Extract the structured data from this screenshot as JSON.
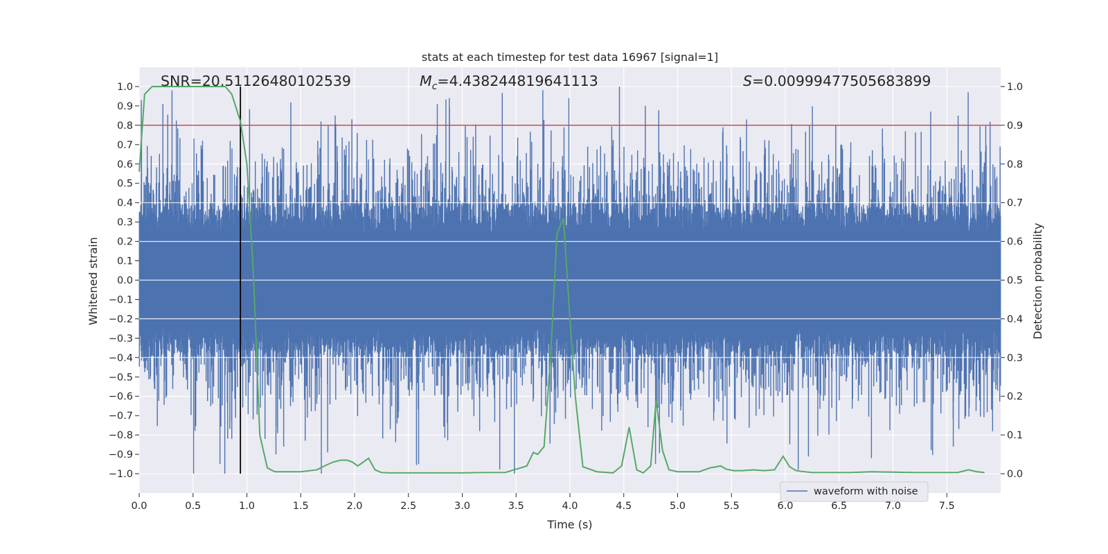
{
  "chart_data": {
    "type": "line",
    "title": "stats at each timestep for test data 16967 [signal=1]",
    "xlabel": "Time (s)",
    "ylabel": "Whitened strain",
    "y2label": "Detection probability",
    "xlim": [
      0.0,
      8.0
    ],
    "ylim": [
      -1.1,
      1.1
    ],
    "y2lim": [
      -0.05,
      1.05
    ],
    "xticks": [
      0.0,
      0.5,
      1.0,
      1.5,
      2.0,
      2.5,
      3.0,
      3.5,
      4.0,
      4.5,
      5.0,
      5.5,
      6.0,
      6.5,
      7.0,
      7.5
    ],
    "yticks": [
      1.0,
      0.9,
      0.8,
      0.7,
      0.6,
      0.5,
      0.4,
      0.3,
      0.2,
      0.1,
      0.0,
      -0.1,
      -0.2,
      -0.3,
      -0.4,
      -0.5,
      -0.6,
      -0.7,
      -0.8,
      -0.9,
      -1.0
    ],
    "y2ticks": [
      1.0,
      0.9,
      0.8,
      0.7,
      0.6,
      0.5,
      0.4,
      0.3,
      0.2,
      0.1,
      0.0
    ],
    "xtick_labels": [
      "0.0",
      "0.5",
      "1.0",
      "1.5",
      "2.0",
      "2.5",
      "3.0",
      "3.5",
      "4.0",
      "4.5",
      "5.0",
      "5.5",
      "6.0",
      "6.5",
      "7.0",
      "7.5"
    ],
    "ytick_labels": [
      "1.0",
      "0.9",
      "0.8",
      "0.7",
      "0.6",
      "0.5",
      "0.4",
      "0.3",
      "0.2",
      "0.1",
      "0.0",
      "−0.1",
      "−0.2",
      "−0.3",
      "−0.4",
      "−0.5",
      "−0.6",
      "−0.7",
      "−0.8",
      "−0.9",
      "−1.0"
    ],
    "y2tick_labels": [
      "1.0",
      "0.9",
      "0.8",
      "0.7",
      "0.6",
      "0.5",
      "0.4",
      "0.3",
      "0.2",
      "0.1",
      "0.0"
    ],
    "annotations": {
      "snr": "SNR=20.51126480102539",
      "mc_symbol": "M",
      "mc_sub": "c",
      "mc_value": "=4.438244819641113",
      "s_symbol": "S",
      "s_value": "=0.00999477505683899"
    },
    "threshold_line": {
      "y2": 0.9,
      "color": "#c44e52"
    },
    "marker_line": {
      "x": 0.94,
      "ymin": -1.0,
      "ymax": 1.0,
      "color": "#000000"
    },
    "legend": {
      "label": "waveform with noise",
      "location": "lower right"
    },
    "waveform": {
      "name": "waveform with noise",
      "color": "#4c72b0",
      "core_band": [
        -0.4,
        0.4
      ],
      "max_abs": 1.0,
      "spikes": [
        [
          0.02,
          0.93
        ],
        [
          0.22,
          0.91
        ],
        [
          0.75,
          -0.95
        ],
        [
          0.86,
          -0.82
        ],
        [
          1.27,
          -0.9
        ],
        [
          1.75,
          -0.89
        ],
        [
          1.82,
          0.85
        ],
        [
          2.88,
          0.94
        ],
        [
          3.99,
          0.94
        ],
        [
          4.46,
          1.0
        ],
        [
          4.7,
          0.9
        ],
        [
          5.64,
          0.83
        ],
        [
          6.12,
          -0.98
        ],
        [
          6.8,
          -0.92
        ],
        [
          7.35,
          0.87
        ],
        [
          7.56,
          -0.86
        ]
      ]
    },
    "probability": {
      "name": "detection probability",
      "color": "#55a868",
      "x": [
        0.0,
        0.05,
        0.12,
        0.3,
        0.5,
        0.7,
        0.8,
        0.86,
        0.94,
        1.0,
        1.06,
        1.12,
        1.19,
        1.26,
        1.35,
        1.5,
        1.65,
        1.72,
        1.8,
        1.87,
        1.93,
        1.98,
        2.03,
        2.08,
        2.13,
        2.19,
        2.25,
        2.32,
        2.5,
        2.8,
        3.0,
        3.2,
        3.4,
        3.48,
        3.54,
        3.6,
        3.66,
        3.7,
        3.76,
        3.82,
        3.88,
        3.94,
        4.0,
        4.05,
        4.12,
        4.25,
        4.4,
        4.48,
        4.55,
        4.62,
        4.68,
        4.75,
        4.8,
        4.86,
        4.92,
        5.0,
        5.1,
        5.2,
        5.3,
        5.4,
        5.45,
        5.52,
        5.6,
        5.7,
        5.8,
        5.9,
        5.98,
        6.04,
        6.1,
        6.15,
        6.25,
        6.4,
        6.6,
        6.8,
        7.0,
        7.2,
        7.4,
        7.6,
        7.7,
        7.78,
        7.85
      ],
      "y": [
        0.78,
        0.98,
        1.0,
        1.0,
        1.0,
        1.0,
        1.0,
        0.98,
        0.91,
        0.8,
        0.52,
        0.1,
        0.015,
        0.005,
        0.005,
        0.005,
        0.01,
        0.02,
        0.03,
        0.035,
        0.035,
        0.03,
        0.02,
        0.03,
        0.04,
        0.01,
        0.003,
        0.002,
        0.002,
        0.002,
        0.002,
        0.003,
        0.003,
        0.01,
        0.015,
        0.02,
        0.055,
        0.05,
        0.07,
        0.3,
        0.62,
        0.66,
        0.4,
        0.2,
        0.018,
        0.005,
        0.002,
        0.02,
        0.12,
        0.01,
        0.002,
        0.02,
        0.19,
        0.06,
        0.01,
        0.005,
        0.005,
        0.005,
        0.015,
        0.02,
        0.012,
        0.008,
        0.008,
        0.01,
        0.008,
        0.01,
        0.045,
        0.018,
        0.008,
        0.006,
        0.003,
        0.003,
        0.003,
        0.005,
        0.004,
        0.003,
        0.003,
        0.003,
        0.01,
        0.005,
        0.003
      ]
    }
  }
}
